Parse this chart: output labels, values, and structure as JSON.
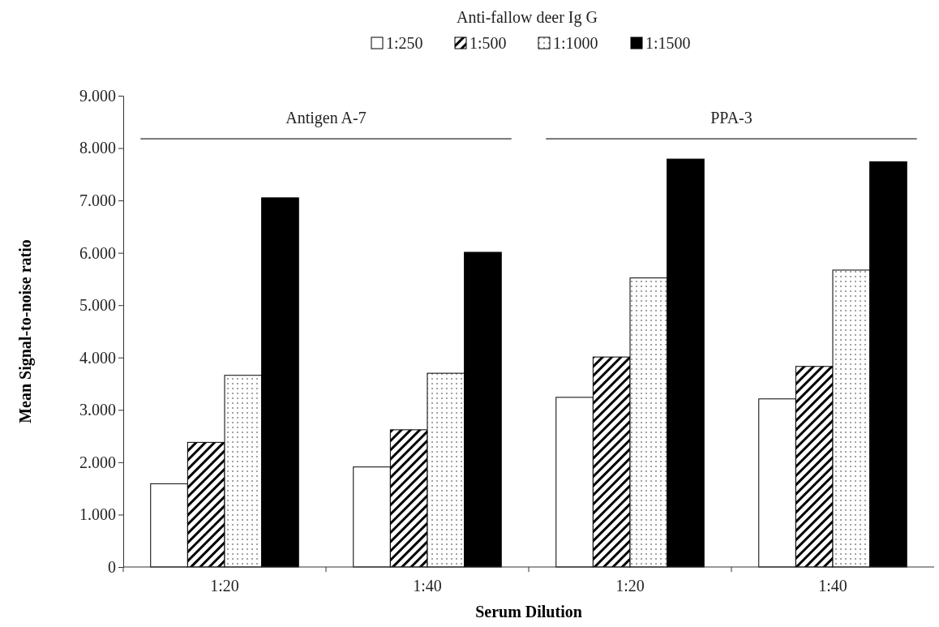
{
  "chart_data": {
    "type": "bar",
    "legend_title": "Anti-fallow deer Ig G",
    "xlabel": "Serum Dilution",
    "ylabel": "Mean Signal-to-noise ratio",
    "categories": [
      "1:20",
      "1:40",
      "1:20",
      "1:40"
    ],
    "annotations": [
      "Antigen A-7",
      "PPA-3"
    ],
    "series": [
      {
        "name": "1:250",
        "color": "#ffffff",
        "values": [
          1590,
          1910,
          3240,
          3210
        ]
      },
      {
        "name": "1:500",
        "color": "#000000",
        "values": [
          2380,
          2620,
          4010,
          3830
        ]
      },
      {
        "name": "1:1000",
        "color": "#000000",
        "values": [
          3660,
          3700,
          5520,
          5670
        ]
      },
      {
        "name": "1:1500",
        "color": "#000000",
        "values": [
          7050,
          6010,
          7790,
          7740
        ]
      }
    ],
    "ylim": [
      0,
      9000
    ],
    "yticks": [
      0,
      {
        "value": 1000,
        "label": "1.000"
      },
      {
        "value": 2000,
        "label": "2.000"
      },
      {
        "value": 3000,
        "label": "3.000"
      },
      {
        "value": 4000,
        "label": "4.000"
      },
      {
        "value": 5000,
        "label": "5.000"
      },
      {
        "value": 6000,
        "label": "6.000"
      },
      {
        "value": 7000,
        "label": "7.000"
      },
      {
        "value": 8000,
        "label": "8.000"
      },
      {
        "value": 9000,
        "label": "9.000"
      }
    ],
    "legend": "top",
    "grid": false
  }
}
